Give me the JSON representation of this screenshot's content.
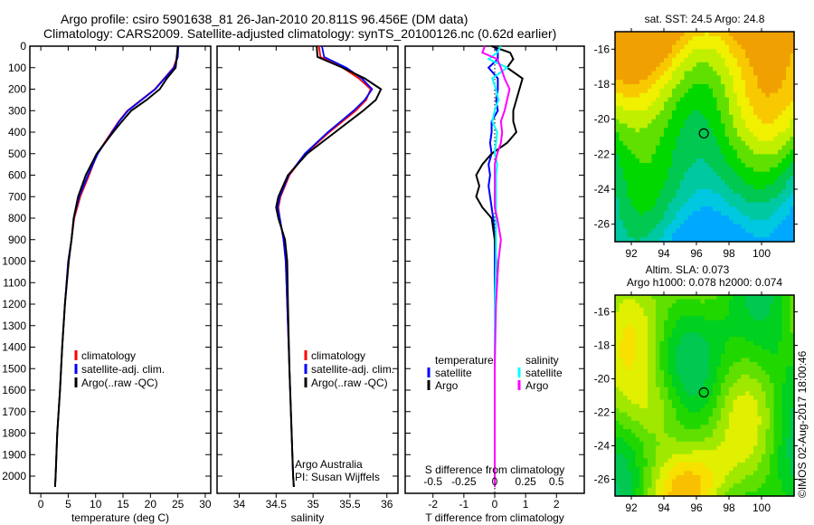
{
  "title_line1": "Argo profile: csiro 5901638_81 26-Jan-2010 20.811S 96.456E (DM data)",
  "title_line2": "Climatology: CARS2009. Satellite-adjusted climatology: synTS_20100126.nc (0.62d earlier)",
  "copyright": "©IMOS 02-Aug-2017 18:00:46",
  "colors": {
    "climatology": "#ff0000",
    "satellite": "#0000ff",
    "argo": "#000000",
    "sal_satellite": "#00ffff",
    "sal_argo": "#ff00ff"
  },
  "chart_data": [
    {
      "type": "line",
      "name": "temperature-profile",
      "xlabel": "temperature (deg C)",
      "ylabel": "",
      "xlim": [
        -2,
        31
      ],
      "ylim": [
        2080,
        0
      ],
      "xticks": [
        0,
        5,
        10,
        15,
        20,
        25,
        30
      ],
      "yticks": [
        0,
        100,
        200,
        300,
        400,
        500,
        600,
        700,
        800,
        900,
        1000,
        1100,
        1200,
        1300,
        1400,
        1500,
        1600,
        1700,
        1800,
        1900,
        2000
      ],
      "depth": [
        0,
        50,
        100,
        150,
        200,
        250,
        300,
        350,
        400,
        500,
        600,
        700,
        800,
        900,
        1000,
        1200,
        1400,
        1600,
        1800,
        2000,
        2050
      ],
      "series": [
        {
          "name": "climatology",
          "values": [
            25,
            24.9,
            24.2,
            22.5,
            20.8,
            18.3,
            15.8,
            14.2,
            12.9,
            10.3,
            8.8,
            7.2,
            6.1,
            5.6,
            5.0,
            4.4,
            3.9,
            3.5,
            3.0,
            2.7,
            2.6
          ]
        },
        {
          "name": "satellite-adj. clim.",
          "values": [
            25.1,
            25.0,
            24.3,
            22.6,
            20.9,
            18.4,
            15.9,
            14.3,
            13.0,
            10.4,
            8.6,
            7.0,
            6.0,
            5.6,
            5.0,
            4.4,
            3.9,
            3.5,
            3.0,
            2.7,
            2.6
          ]
        },
        {
          "name": "Argo(..raw -QC)",
          "values": [
            25,
            24.8,
            24.6,
            23.0,
            21.7,
            19.3,
            16.5,
            14.8,
            13.2,
            10.2,
            8.2,
            6.8,
            6.0,
            5.6,
            5.1,
            4.4,
            3.9,
            3.5,
            3.0,
            2.7,
            2.6
          ]
        }
      ],
      "legend": [
        "climatology",
        "satellite-adj. clim.",
        "Argo(..raw -QC)"
      ]
    },
    {
      "type": "line",
      "name": "salinity-profile",
      "xlabel": "salinity",
      "xlim": [
        33.7,
        36.15
      ],
      "ylim": [
        2080,
        0
      ],
      "xticks": [
        34,
        34.5,
        35,
        35.5,
        36
      ],
      "depth": [
        0,
        50,
        100,
        150,
        200,
        250,
        300,
        400,
        500,
        600,
        700,
        750,
        800,
        900,
        1000,
        1200,
        1500,
        2000,
        2050
      ],
      "series": [
        {
          "name": "climatology",
          "values": [
            35.08,
            35.1,
            35.4,
            35.62,
            35.78,
            35.72,
            35.58,
            35.22,
            34.9,
            34.68,
            34.56,
            34.53,
            34.55,
            34.6,
            34.63,
            34.65,
            34.68,
            34.73,
            34.74
          ]
        },
        {
          "name": "satellite-adj. clim.",
          "values": [
            35.12,
            35.15,
            35.45,
            35.66,
            35.8,
            35.7,
            35.55,
            35.2,
            34.89,
            34.67,
            34.55,
            34.52,
            34.55,
            34.6,
            34.63,
            34.65,
            34.68,
            34.73,
            34.74
          ]
        },
        {
          "name": "Argo(..raw -QC)",
          "values": [
            35.05,
            35.06,
            35.4,
            35.7,
            35.92,
            35.85,
            35.68,
            35.3,
            34.92,
            34.66,
            34.53,
            34.5,
            34.53,
            34.62,
            34.65,
            34.66,
            34.68,
            34.73,
            34.74
          ]
        }
      ],
      "legend": [
        "climatology",
        "satellite-adj. clim.",
        "Argo(..raw -QC)"
      ],
      "annotation": [
        "Argo Australia",
        "PI: Susan Wijffels"
      ]
    },
    {
      "type": "line",
      "name": "difference-profile",
      "xlabel": "T difference from climatology",
      "x2label": "S difference from climatology",
      "xlim": [
        -2.9,
        2.9
      ],
      "x2lim": [
        -0.725,
        0.725
      ],
      "ylim": [
        2080,
        0
      ],
      "xticks": [
        -2,
        -1,
        0,
        1,
        2
      ],
      "x2ticks": [
        -0.5,
        -0.25,
        0,
        0.25,
        0.5
      ],
      "depth": [
        0,
        30,
        60,
        100,
        150,
        200,
        250,
        300,
        350,
        400,
        450,
        500,
        550,
        600,
        650,
        700,
        750,
        800,
        900,
        1000,
        1200,
        1500,
        2000,
        2050
      ],
      "series": [
        {
          "name": "T satellite",
          "values": [
            0,
            0.1,
            0.1,
            -0.2,
            0.1,
            0.1,
            0.05,
            0.1,
            -0.1,
            -0.1,
            -0.15,
            -0.1,
            -0.2,
            -0.15,
            -0.2,
            -0.15,
            -0.1,
            -0.05,
            0,
            0,
            0,
            0,
            0,
            0
          ]
        },
        {
          "name": "T Argo",
          "values": [
            -0.1,
            0.5,
            0.6,
            0.4,
            0.9,
            0.8,
            0.7,
            0.6,
            0.6,
            0.7,
            0.4,
            -0.1,
            -0.4,
            -0.6,
            -0.5,
            -0.6,
            -0.4,
            -0.1,
            0,
            0.05,
            0,
            0,
            0,
            0
          ]
        },
        {
          "name": "S satellite",
          "values": [
            0.05,
            0.02,
            -0.05,
            0.1,
            -0.02,
            0.01,
            0.03,
            0,
            -0.02,
            0.02,
            0.01,
            0,
            0.02,
            0.01,
            0.01,
            0.01,
            0.01,
            0.01,
            0.01,
            0.01,
            0,
            0,
            0,
            0
          ]
        },
        {
          "name": "S Argo",
          "values": [
            -0.08,
            -0.1,
            0.02,
            0.05,
            0.08,
            0.12,
            0.1,
            0.08,
            0.05,
            0.06,
            0.05,
            0.02,
            0,
            0,
            0,
            0,
            0,
            0.02,
            0.05,
            0.03,
            0.01,
            0,
            0,
            0
          ]
        }
      ],
      "legend_temperature": {
        "heading": "temperature",
        "items": [
          "satellite",
          "Argo"
        ]
      },
      "legend_salinity": {
        "heading": "salinity",
        "items": [
          "satellite",
          "Argo"
        ]
      }
    },
    {
      "type": "heatmap",
      "name": "sst-map",
      "title": "sat. SST: 24.5  Argo: 24.8",
      "xlim": [
        91,
        102
      ],
      "ylim": [
        -27,
        -15
      ],
      "xticks": [
        92,
        94,
        96,
        98,
        100
      ],
      "yticks": [
        -16,
        -18,
        -20,
        -22,
        -24,
        -26
      ],
      "marker": [
        96.456,
        -20.811
      ]
    },
    {
      "type": "heatmap",
      "name": "sla-map",
      "title": "Altim. SLA: 0.073",
      "subtitle": "Argo h1000: 0.078 h2000: 0.074",
      "xlim": [
        91,
        102
      ],
      "ylim": [
        -27,
        -15
      ],
      "xticks": [
        92,
        94,
        96,
        98,
        100
      ],
      "yticks": [
        -16,
        -18,
        -20,
        -22,
        -24,
        -26
      ],
      "marker": [
        96.456,
        -20.811
      ]
    }
  ]
}
